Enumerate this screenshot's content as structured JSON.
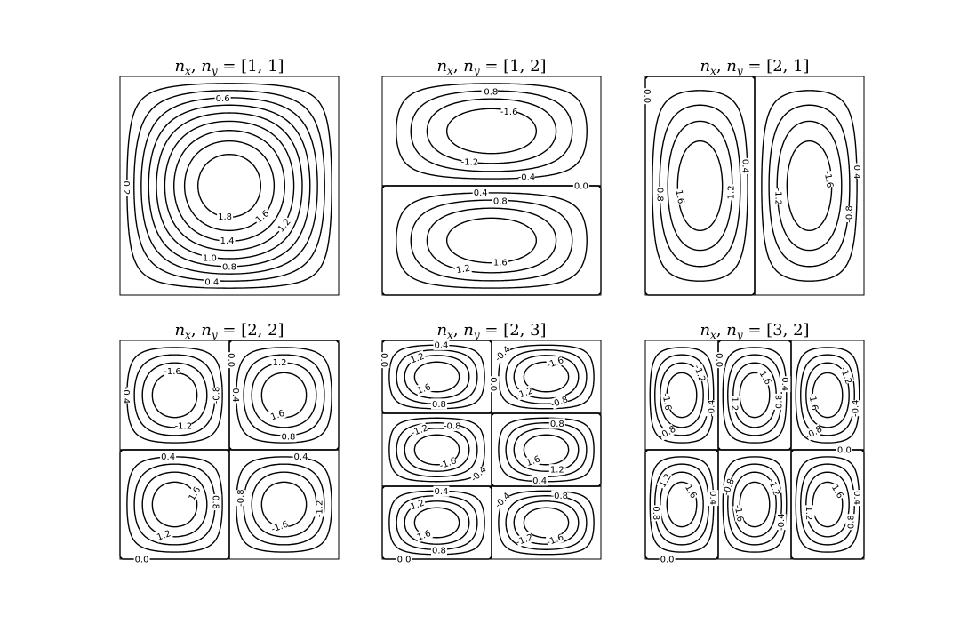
{
  "chart_data": [
    {
      "type": "contour",
      "title_parts": [
        "n",
        "x",
        ", ",
        "n",
        "y",
        " = [1, 1]"
      ],
      "modes": [
        1,
        1
      ],
      "xlim": [
        0,
        1
      ],
      "ylim": [
        0,
        1
      ],
      "contour_levels": [
        0.2,
        0.4,
        0.6,
        0.8,
        1.0,
        1.2,
        1.4,
        1.6,
        1.8
      ],
      "labels": [
        {
          "text": "0.6",
          "x": 0.47,
          "y": 0.9
        },
        {
          "text": "0.2",
          "x": 0.03,
          "y": 0.49,
          "rot": 90
        },
        {
          "text": "1.8",
          "x": 0.48,
          "y": 0.36
        },
        {
          "text": "1.6",
          "x": 0.65,
          "y": 0.36,
          "rot": -40
        },
        {
          "text": "1.2",
          "x": 0.75,
          "y": 0.32,
          "rot": -50
        },
        {
          "text": "1.4",
          "x": 0.49,
          "y": 0.25
        },
        {
          "text": "1.0",
          "x": 0.41,
          "y": 0.17
        },
        {
          "text": "0.8",
          "x": 0.5,
          "y": 0.13
        },
        {
          "text": "0.4",
          "x": 0.42,
          "y": 0.06
        }
      ]
    },
    {
      "type": "contour",
      "title_parts": [
        "n",
        "x",
        ", ",
        "n",
        "y",
        " = [1, 2]"
      ],
      "modes": [
        1,
        2
      ],
      "xlim": [
        0,
        1
      ],
      "ylim": [
        0,
        1
      ],
      "contour_levels": [
        -1.6,
        -1.2,
        -0.8,
        -0.4,
        0.0,
        0.4,
        0.8,
        1.2,
        1.6
      ],
      "labels": [
        {
          "text": "-0.8",
          "x": 0.49,
          "y": 0.93
        },
        {
          "text": "-1.6",
          "x": 0.58,
          "y": 0.84
        },
        {
          "text": "-1.2",
          "x": 0.4,
          "y": 0.61
        },
        {
          "text": "-0.4",
          "x": 0.66,
          "y": 0.54
        },
        {
          "text": "0.0",
          "x": 0.91,
          "y": 0.5
        },
        {
          "text": "0.4",
          "x": 0.45,
          "y": 0.47
        },
        {
          "text": "0.8",
          "x": 0.54,
          "y": 0.43
        },
        {
          "text": "1.6",
          "x": 0.54,
          "y": 0.15
        },
        {
          "text": "1.2",
          "x": 0.37,
          "y": 0.12,
          "rot": -10
        }
      ]
    },
    {
      "type": "contour",
      "title_parts": [
        "n",
        "x",
        ", ",
        "n",
        "y",
        " = [2, 1]"
      ],
      "modes": [
        2,
        1
      ],
      "xlim": [
        0,
        1
      ],
      "ylim": [
        0,
        1
      ],
      "contour_levels": [
        -1.6,
        -1.2,
        -0.8,
        -0.4,
        0.0,
        0.4,
        0.8,
        1.2,
        1.6
      ],
      "labels": [
        {
          "text": "0.0",
          "x": 0.01,
          "y": 0.91,
          "rot": 90
        },
        {
          "text": "0.4",
          "x": 0.46,
          "y": 0.59,
          "rot": 90
        },
        {
          "text": "1.6",
          "x": 0.16,
          "y": 0.45,
          "rot": 80
        },
        {
          "text": "1.2",
          "x": 0.39,
          "y": 0.47,
          "rot": -90
        },
        {
          "text": "0.8",
          "x": 0.07,
          "y": 0.46,
          "rot": 90
        },
        {
          "text": "-1.6",
          "x": 0.84,
          "y": 0.53,
          "rot": 80
        },
        {
          "text": "-1.2",
          "x": 0.61,
          "y": 0.45,
          "rot": 90
        },
        {
          "text": "-0.8",
          "x": 0.93,
          "y": 0.37,
          "rot": -90
        },
        {
          "text": "-0.4",
          "x": 0.97,
          "y": 0.57,
          "rot": 90
        }
      ]
    },
    {
      "type": "contour",
      "title_parts": [
        "n",
        "x",
        ", ",
        "n",
        "y",
        " = [2, 2]"
      ],
      "modes": [
        2,
        2
      ],
      "xlim": [
        0,
        1
      ],
      "ylim": [
        0,
        1
      ],
      "contour_levels": [
        -1.6,
        -1.2,
        -0.8,
        -0.4,
        0.0,
        0.4,
        0.8,
        1.2,
        1.6
      ],
      "labels": [
        {
          "text": "0.0",
          "x": 0.51,
          "y": 0.91,
          "rot": 90
        },
        {
          "text": "-1.6",
          "x": 0.24,
          "y": 0.86
        },
        {
          "text": "-0.4",
          "x": 0.03,
          "y": 0.75,
          "rot": 90
        },
        {
          "text": "-0.8",
          "x": 0.44,
          "y": 0.75,
          "rot": -90
        },
        {
          "text": "-1.2",
          "x": 0.29,
          "y": 0.61
        },
        {
          "text": "1.2",
          "x": 0.73,
          "y": 0.9
        },
        {
          "text": "0.4",
          "x": 0.53,
          "y": 0.75,
          "rot": 90
        },
        {
          "text": "1.6",
          "x": 0.72,
          "y": 0.66,
          "rot": -20
        },
        {
          "text": "0.8",
          "x": 0.77,
          "y": 0.56
        },
        {
          "text": "0.4",
          "x": 0.22,
          "y": 0.47
        },
        {
          "text": "-0.4",
          "x": 0.82,
          "y": 0.47
        },
        {
          "text": "1.6",
          "x": 0.34,
          "y": 0.3,
          "rot": -60
        },
        {
          "text": "0.8",
          "x": 0.44,
          "y": 0.26,
          "rot": 90
        },
        {
          "text": "1.2",
          "x": 0.2,
          "y": 0.11,
          "rot": -20
        },
        {
          "text": "-0.8",
          "x": 0.55,
          "y": 0.28,
          "rot": -90
        },
        {
          "text": "-1.2",
          "x": 0.91,
          "y": 0.23,
          "rot": -90
        },
        {
          "text": "-1.6",
          "x": 0.73,
          "y": 0.15,
          "rot": -20
        },
        {
          "text": "0.0",
          "x": 0.1,
          "y": 0.0
        }
      ]
    },
    {
      "type": "contour",
      "title_parts": [
        "n",
        "x",
        ", ",
        "n",
        "y",
        " = [2, 3]"
      ],
      "modes": [
        2,
        3
      ],
      "xlim": [
        0,
        1
      ],
      "ylim": [
        0,
        1
      ],
      "contour_levels": [
        -1.6,
        -1.2,
        -0.8,
        -0.4,
        0.0,
        0.4,
        0.8,
        1.2,
        1.6
      ],
      "labels": [
        {
          "text": "0.4",
          "x": 0.27,
          "y": 0.98
        },
        {
          "text": "0.0",
          "x": 0.01,
          "y": 0.91,
          "rot": 90
        },
        {
          "text": "1.2",
          "x": 0.16,
          "y": 0.92,
          "rot": -20
        },
        {
          "text": "1.6",
          "x": 0.19,
          "y": 0.78,
          "rot": -20
        },
        {
          "text": "0.8",
          "x": 0.26,
          "y": 0.71
        },
        {
          "text": "-0.4",
          "x": 0.55,
          "y": 0.94,
          "rot": -45
        },
        {
          "text": "-1.6",
          "x": 0.79,
          "y": 0.9,
          "rot": -20
        },
        {
          "text": "0.0",
          "x": 0.51,
          "y": 0.8,
          "rot": 90
        },
        {
          "text": "-1.2",
          "x": 0.65,
          "y": 0.76,
          "rot": -20
        },
        {
          "text": "-0.8",
          "x": 0.81,
          "y": 0.72,
          "rot": -20
        },
        {
          "text": "-0.8",
          "x": 0.32,
          "y": 0.61
        },
        {
          "text": "-1.2",
          "x": 0.17,
          "y": 0.59,
          "rot": -20
        },
        {
          "text": "-1.6",
          "x": 0.3,
          "y": 0.44,
          "rot": -20
        },
        {
          "text": "-0.4",
          "x": 0.44,
          "y": 0.39,
          "rot": -45
        },
        {
          "text": "0.8",
          "x": 0.8,
          "y": 0.62
        },
        {
          "text": "1.6",
          "x": 0.69,
          "y": 0.45,
          "rot": -20
        },
        {
          "text": "1.2",
          "x": 0.8,
          "y": 0.41
        },
        {
          "text": "0.4",
          "x": 0.72,
          "y": 0.36
        },
        {
          "text": "0.4",
          "x": 0.27,
          "y": 0.31
        },
        {
          "text": "1.2",
          "x": 0.16,
          "y": 0.25,
          "rot": -20
        },
        {
          "text": "1.6",
          "x": 0.19,
          "y": 0.11,
          "rot": -20
        },
        {
          "text": "0.8",
          "x": 0.26,
          "y": 0.04
        },
        {
          "text": "-0.4",
          "x": 0.55,
          "y": 0.27,
          "rot": -45
        },
        {
          "text": "-0.8",
          "x": 0.81,
          "y": 0.29
        },
        {
          "text": "-1.2",
          "x": 0.65,
          "y": 0.09,
          "rot": -20
        },
        {
          "text": "-1.6",
          "x": 0.79,
          "y": 0.09,
          "rot": -20
        },
        {
          "text": "0.0",
          "x": 0.1,
          "y": 0.0
        }
      ]
    },
    {
      "type": "contour",
      "title_parts": [
        "n",
        "x",
        ", ",
        "n",
        "y",
        " = [3, 2]"
      ],
      "modes": [
        3,
        2
      ],
      "xlim": [
        0,
        1
      ],
      "ylim": [
        0,
        1
      ],
      "contour_levels": [
        -1.6,
        -1.2,
        -0.8,
        -0.4,
        0.0,
        0.4,
        0.8,
        1.2,
        1.6
      ],
      "labels": [
        {
          "text": "0.0",
          "x": 0.34,
          "y": 0.91,
          "rot": 90
        },
        {
          "text": "-1.2",
          "x": 0.25,
          "y": 0.85,
          "rot": 70
        },
        {
          "text": "-1.6",
          "x": 0.1,
          "y": 0.72,
          "rot": 80
        },
        {
          "text": "-0.4",
          "x": 0.3,
          "y": 0.69,
          "rot": -90
        },
        {
          "text": "-0.8",
          "x": 0.1,
          "y": 0.58,
          "rot": -30
        },
        {
          "text": "1.6",
          "x": 0.55,
          "y": 0.83,
          "rot": 60
        },
        {
          "text": "0.4",
          "x": 0.64,
          "y": 0.8,
          "rot": 90
        },
        {
          "text": "1.2",
          "x": 0.41,
          "y": 0.71,
          "rot": 90
        },
        {
          "text": "0.8",
          "x": 0.61,
          "y": 0.72,
          "rot": -90
        },
        {
          "text": "-1.2",
          "x": 0.92,
          "y": 0.84,
          "rot": 70
        },
        {
          "text": "-1.6",
          "x": 0.77,
          "y": 0.72,
          "rot": 80
        },
        {
          "text": "-0.4",
          "x": 0.96,
          "y": 0.69,
          "rot": -90
        },
        {
          "text": "-0.8",
          "x": 0.77,
          "y": 0.58,
          "rot": -30
        },
        {
          "text": "0.0",
          "x": 0.91,
          "y": 0.5
        },
        {
          "text": "1.2",
          "x": 0.09,
          "y": 0.36,
          "rot": -60
        },
        {
          "text": "1.6",
          "x": 0.21,
          "y": 0.31,
          "rot": 60
        },
        {
          "text": "0.4",
          "x": 0.31,
          "y": 0.28,
          "rot": 90
        },
        {
          "text": "0.8",
          "x": 0.05,
          "y": 0.21,
          "rot": 90
        },
        {
          "text": "-0.8",
          "x": 0.38,
          "y": 0.33,
          "rot": -70
        },
        {
          "text": "-1.2",
          "x": 0.59,
          "y": 0.33,
          "rot": 70
        },
        {
          "text": "-1.6",
          "x": 0.43,
          "y": 0.21,
          "rot": 80
        },
        {
          "text": "-0.4",
          "x": 0.62,
          "y": 0.17,
          "rot": -90
        },
        {
          "text": "1.6",
          "x": 0.88,
          "y": 0.31,
          "rot": 60
        },
        {
          "text": "0.4",
          "x": 0.97,
          "y": 0.28,
          "rot": 90
        },
        {
          "text": "1.2",
          "x": 0.75,
          "y": 0.21,
          "rot": 90
        },
        {
          "text": "0.8",
          "x": 0.94,
          "y": 0.17,
          "rot": -90
        },
        {
          "text": "0.0",
          "x": 0.1,
          "y": 0.0
        }
      ]
    }
  ]
}
